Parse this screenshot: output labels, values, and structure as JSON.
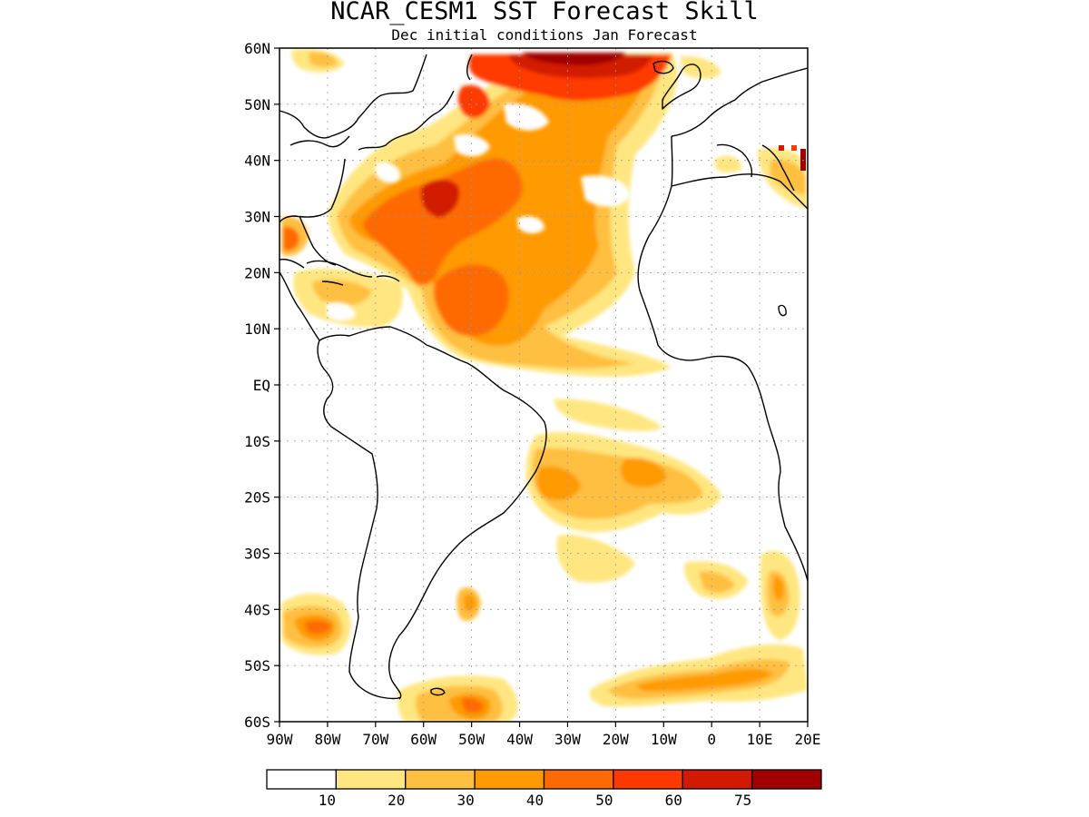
{
  "title": "NCAR_CESM1  SST Forecast Skill",
  "subtitle": "Dec initial conditions  Jan Forecast",
  "map": {
    "lon_range": [
      -90,
      20
    ],
    "lat_range": [
      -60,
      60
    ],
    "grid": true,
    "lat_labels": [
      "60N",
      "50N",
      "40N",
      "30N",
      "20N",
      "10N",
      "EQ",
      "10S",
      "20S",
      "30S",
      "40S",
      "50S",
      "60S"
    ],
    "lon_labels": [
      "90W",
      "80W",
      "70W",
      "60W",
      "50W",
      "40W",
      "30W",
      "20W",
      "10W",
      "0",
      "10E",
      "20E"
    ]
  },
  "colorbar": {
    "labels": [
      "10",
      "20",
      "30",
      "40",
      "50",
      "60",
      "75"
    ],
    "colors": [
      "#ffffff",
      "#ffe680",
      "#ffbf40",
      "#ff9a00",
      "#ff6a00",
      "#ff3a00",
      "#d21a00",
      "#a00000"
    ]
  }
}
